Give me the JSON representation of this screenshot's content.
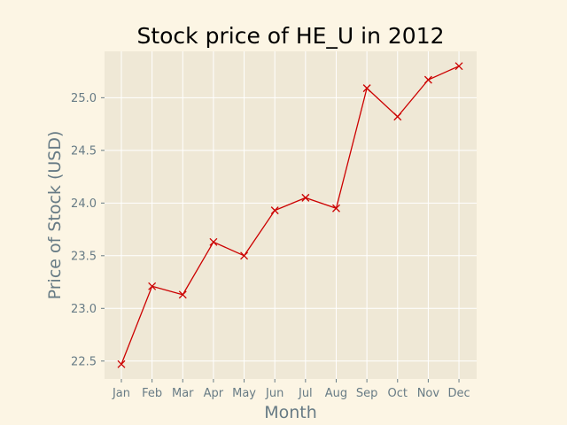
{
  "chart_data": {
    "type": "line",
    "title": "Stock price of HE_U in 2012",
    "xlabel": "Month",
    "ylabel": "Price of Stock (USD)",
    "categories": [
      "Jan",
      "Feb",
      "Mar",
      "Apr",
      "May",
      "Jun",
      "Jul",
      "Aug",
      "Sep",
      "Oct",
      "Nov",
      "Dec"
    ],
    "series": [
      {
        "values": [
          22.47,
          23.21,
          23.13,
          23.63,
          23.5,
          23.93,
          24.05,
          23.95,
          25.09,
          24.82,
          25.17,
          25.3
        ]
      }
    ],
    "ylim": [
      22.33,
      25.44
    ],
    "yticks": [
      22.5,
      23.0,
      23.5,
      24.0,
      24.5,
      25.0
    ],
    "ytick_labels": [
      "22.5",
      "23.0",
      "23.5",
      "24.0",
      "24.5",
      "25.0"
    ],
    "grid": true,
    "marker": "x",
    "colors": {
      "line": "#cc0000",
      "plot_background": "#efe8d6",
      "figure_background": "#fcf5e4",
      "grid": "#ffffff",
      "label_text": "#677b85"
    }
  }
}
